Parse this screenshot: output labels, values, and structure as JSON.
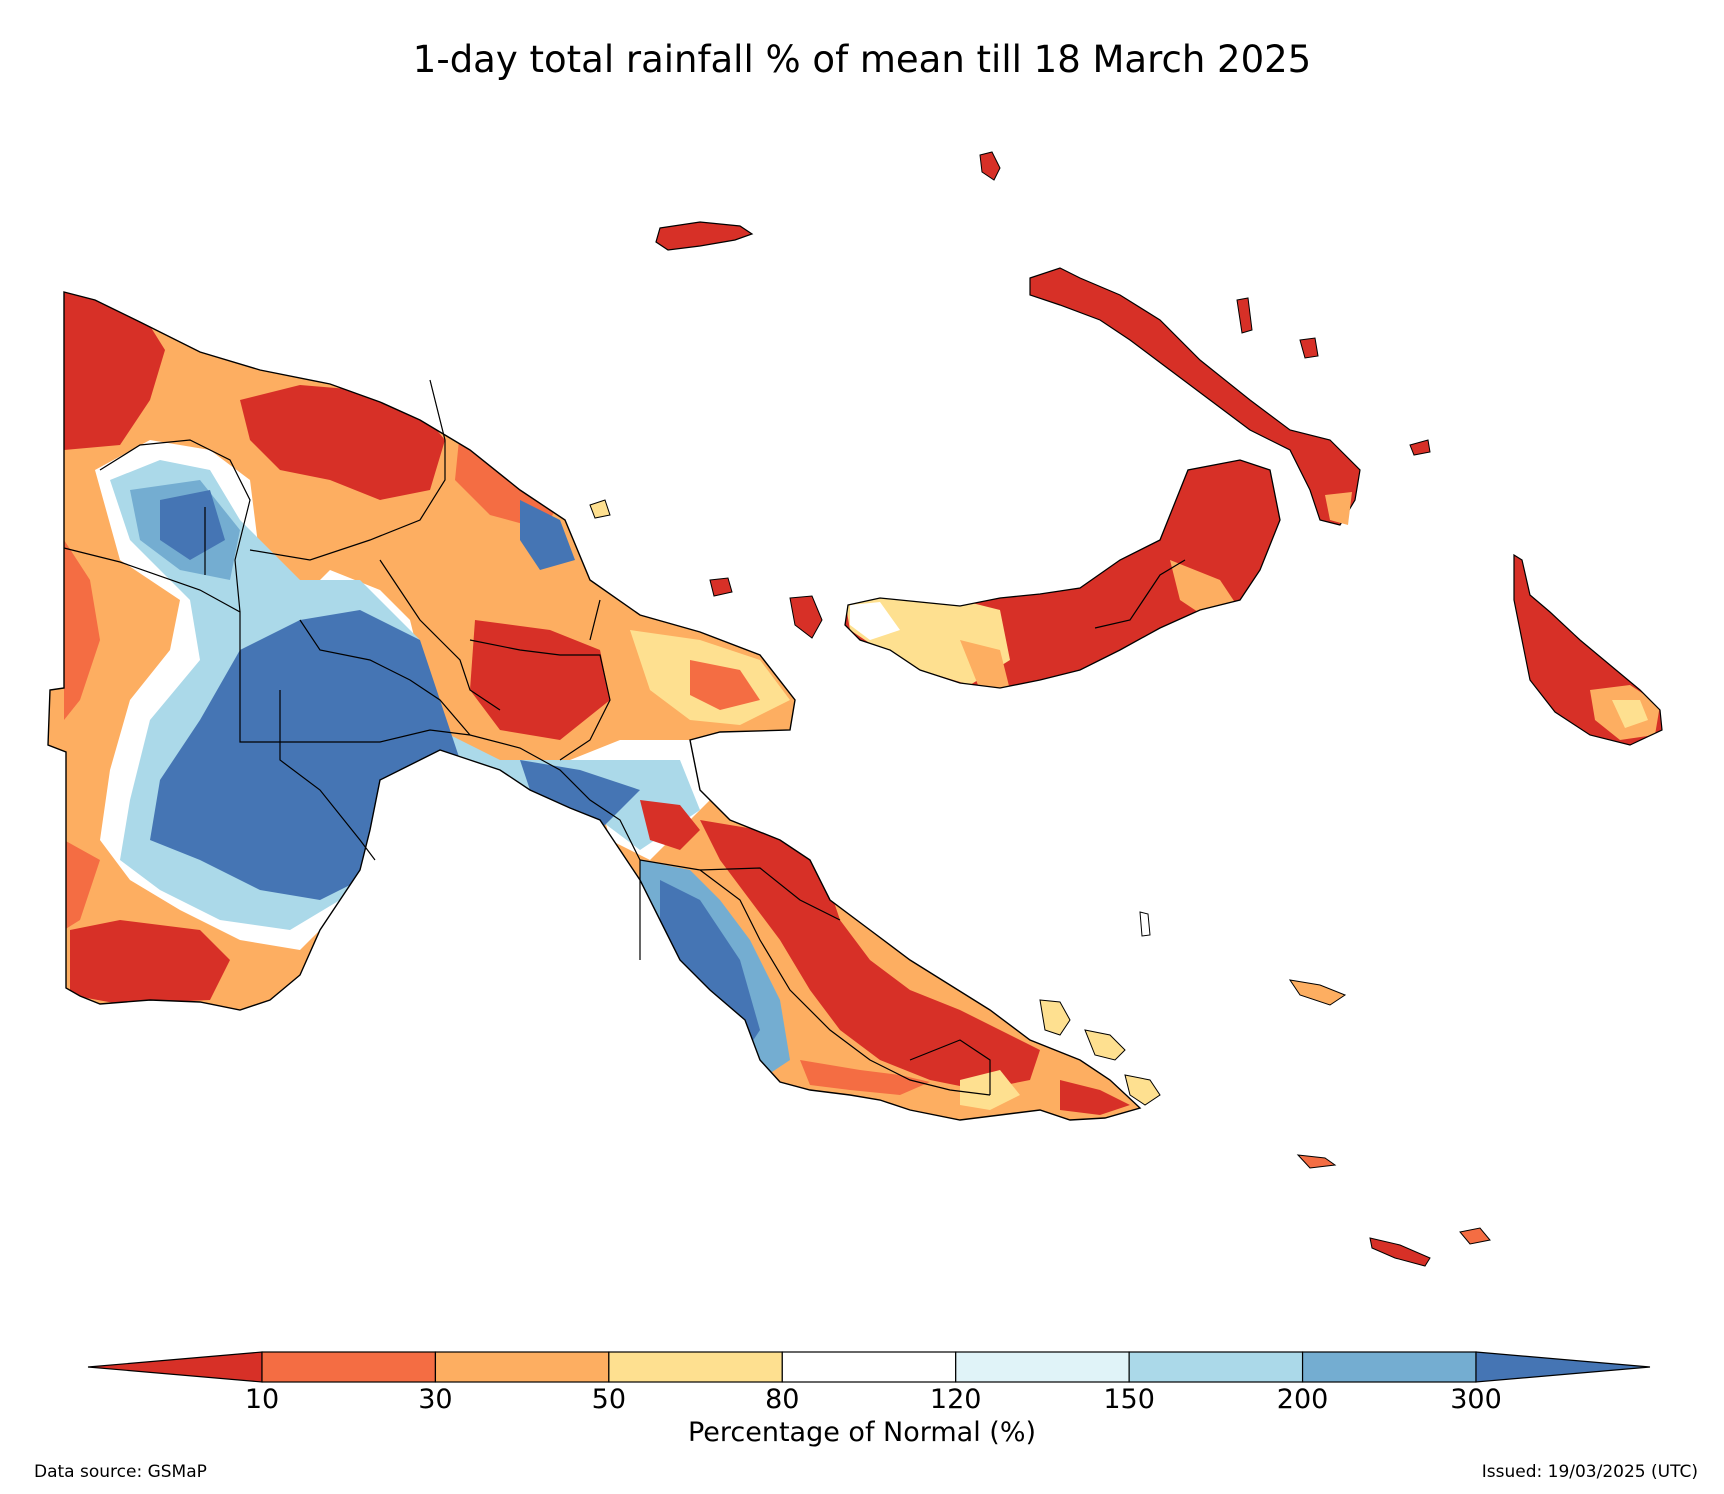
{
  "title": "1-day total rainfall % of mean till 18 March 2025",
  "colorbar": {
    "label": "Percentage of Normal (%)",
    "ticks": [
      "10",
      "30",
      "50",
      "80",
      "120",
      "150",
      "200",
      "300"
    ],
    "colors": [
      "#d73027",
      "#f46d43",
      "#fdae61",
      "#fee090",
      "#ffffff",
      "#e0f3f8",
      "#abd9e9",
      "#74add1",
      "#4575b4"
    ]
  },
  "footer": {
    "source": "Data source: GSMaP",
    "issued": "Issued: 19/03/2025 (UTC)"
  }
}
